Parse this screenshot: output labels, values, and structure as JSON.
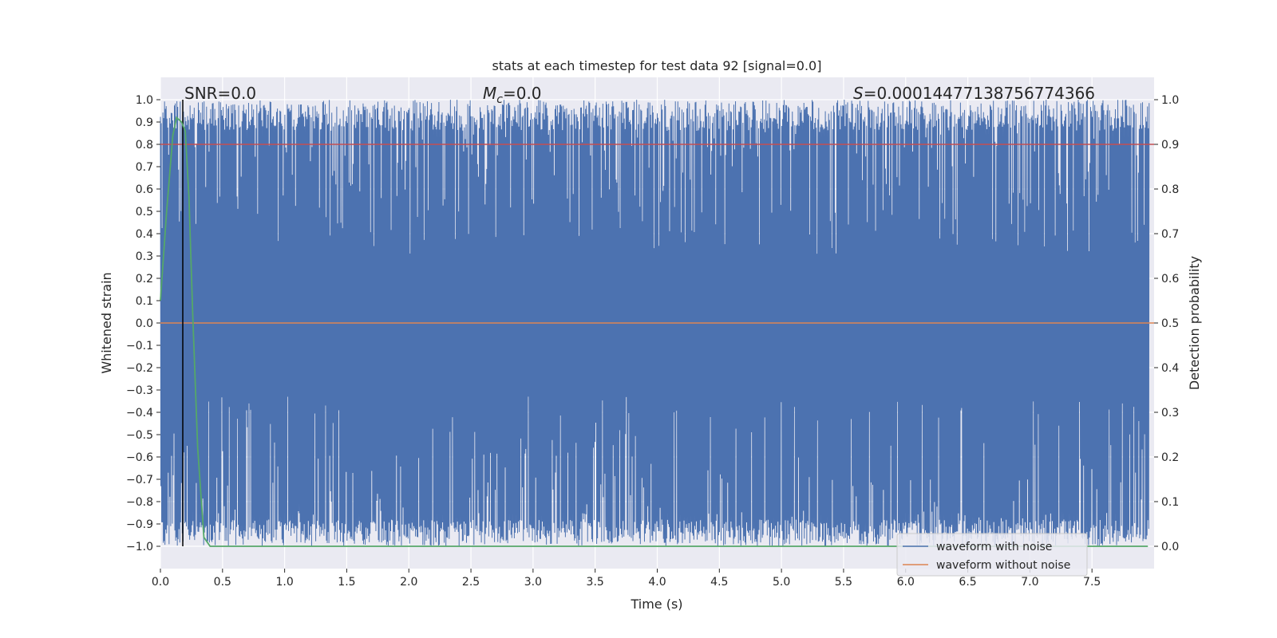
{
  "chart_data": {
    "type": "line",
    "title": "stats at each timestep for test data 92 [signal=0.0]",
    "xlabel": "Time (s)",
    "ylabel_left": "Whitened strain",
    "ylabel_right": "Detection probability",
    "xlim": [
      0.0,
      8.0
    ],
    "ylim_left": [
      -1.1,
      1.1
    ],
    "ylim_right": [
      -0.05,
      1.05
    ],
    "x_ticks": [
      "0.0",
      "0.5",
      "1.0",
      "1.5",
      "2.0",
      "2.5",
      "3.0",
      "3.5",
      "4.0",
      "4.5",
      "5.0",
      "5.5",
      "6.0",
      "6.5",
      "7.0",
      "7.5"
    ],
    "y_left_ticks": [
      "1.0",
      "0.9",
      "0.8",
      "0.7",
      "0.6",
      "0.5",
      "0.4",
      "0.3",
      "0.2",
      "0.1",
      "0.0",
      "−0.1",
      "−0.2",
      "−0.3",
      "−0.4",
      "−0.5",
      "−0.6",
      "−0.7",
      "−0.8",
      "−0.9",
      "−1.0"
    ],
    "y_right_ticks": [
      "1.0",
      "0.9",
      "0.8",
      "0.7",
      "0.6",
      "0.5",
      "0.4",
      "0.3",
      "0.2",
      "0.1",
      "0.0"
    ],
    "grid": true,
    "legend_position": "lower-right",
    "annotations": {
      "snr": "SNR=0.0",
      "mc_symbol": "M",
      "mc_sub": "c",
      "mc_value": "=0.0",
      "s_symbol": "S",
      "s_value": "=0.00014477138756774366"
    },
    "series": [
      {
        "name": "waveform with noise",
        "axis": "left",
        "color": "#4c72b0",
        "description": "normalized whitened strain noise, oscillating rapidly between about -1.0 and 1.0 over the full 0-8 s range",
        "range": [
          -1.0,
          1.0
        ]
      },
      {
        "name": "waveform without noise",
        "axis": "left",
        "color": "#dd8452",
        "x": [
          0.0,
          8.0
        ],
        "y": [
          0.0,
          0.0
        ]
      },
      {
        "axis": "right",
        "color": "#55a868",
        "x": [
          0.0,
          0.05,
          0.1,
          0.13,
          0.17,
          0.2,
          0.23,
          0.26,
          0.3,
          0.35,
          0.4,
          1.0,
          2.0,
          3.0,
          4.0,
          5.0,
          6.0,
          7.0,
          7.95
        ],
        "y": [
          0.55,
          0.75,
          0.92,
          0.96,
          0.95,
          0.93,
          0.78,
          0.52,
          0.22,
          0.02,
          0.0,
          0.0,
          0.0,
          0.0,
          0.0,
          0.0,
          0.0,
          0.0,
          0.0
        ]
      }
    ],
    "reference_lines": [
      {
        "axis": "right",
        "orientation": "horizontal",
        "value": 0.9,
        "color": "#c44e52"
      },
      {
        "axis": "x",
        "orientation": "vertical",
        "value": 0.18,
        "color": "#000000"
      }
    ],
    "colors": {
      "plot_background": "#eaeaf2",
      "grid": "#ffffff",
      "text": "#262626"
    }
  }
}
